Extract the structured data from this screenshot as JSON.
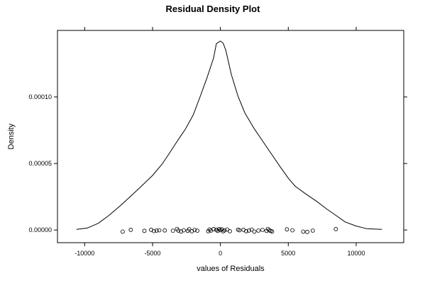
{
  "chart_data": {
    "type": "line",
    "title": "Residual Density Plot",
    "xlabel": "values of Residuals",
    "ylabel": "Density",
    "xlim": [
      -12000,
      13500
    ],
    "ylim": [
      -9.5e-06,
      0.00015
    ],
    "x_ticks": [
      {
        "value": -10000,
        "label": "-10000"
      },
      {
        "value": -5000,
        "label": "-5000"
      },
      {
        "value": 0,
        "label": "0"
      },
      {
        "value": 5000,
        "label": "5000"
      },
      {
        "value": 10000,
        "label": "10000"
      }
    ],
    "y_ticks": [
      {
        "value": 0,
        "label": "0.00000"
      },
      {
        "value": 5e-05,
        "label": "0.00005"
      },
      {
        "value": 0.0001,
        "label": "0.00010"
      }
    ],
    "grid": false,
    "legend": "none",
    "density_curve": {
      "x": [
        -10600,
        -9800,
        -9000,
        -8200,
        -7400,
        -6600,
        -5800,
        -5000,
        -4300,
        -3800,
        -3200,
        -2600,
        -2000,
        -1500,
        -1000,
        -500,
        -300,
        0,
        200,
        400,
        800,
        1300,
        1800,
        2500,
        3200,
        3800,
        4400,
        5000,
        5500,
        6300,
        7100,
        7800,
        8500,
        9200,
        10000,
        10800,
        11900
      ],
      "y": [
        5e-07,
        1.5e-06,
        5e-06,
        1.1e-05,
        1.8e-05,
        2.55e-05,
        3.32e-05,
        4.1e-05,
        4.95e-05,
        5.7e-05,
        6.65e-05,
        7.55e-05,
        8.65e-05,
        0.0001,
        0.000114,
        0.0001295,
        0.00014,
        0.000142,
        0.0001405,
        0.000135,
        0.000117,
        0.0001005,
        8.8e-05,
        7.6e-05,
        6.55e-05,
        5.65e-05,
        4.75e-05,
        3.9e-05,
        3.3e-05,
        2.7e-05,
        2.15e-05,
        1.6e-05,
        1.1e-05,
        6e-06,
        3e-06,
        1e-06,
        5e-07
      ]
    },
    "residual_points": {
      "x": [
        -7200,
        -6600,
        -5600,
        -5100,
        -4900,
        -4700,
        -4500,
        -4100,
        -3500,
        -3200,
        -3100,
        -2900,
        -2700,
        -2400,
        -2300,
        -2100,
        -1900,
        -1700,
        -900,
        -800,
        -700,
        -500,
        -300,
        -200,
        -100,
        0,
        100,
        200,
        300,
        500,
        700,
        1300,
        1400,
        1700,
        1900,
        2100,
        2300,
        2500,
        2800,
        3100,
        3400,
        3500,
        3600,
        3700,
        3800,
        4900,
        5300,
        6100,
        6400,
        6800,
        8500
      ],
      "y": [
        -1.2e-06,
        2e-07,
        -6e-07,
        2e-07,
        -8e-07,
        -4e-07,
        -2e-07,
        -3e-07,
        -5e-07,
        8e-07,
        -4e-07,
        -1.1e-06,
        -2e-07,
        -6e-07,
        6e-07,
        -9e-07,
        1e-07,
        -5e-07,
        -9e-07,
        4e-07,
        -4e-07,
        7e-07,
        2e-07,
        -6e-07,
        7e-07,
        -1e-07,
        5e-07,
        -1e-06,
        -3e-07,
        4e-07,
        -9e-07,
        3e-07,
        -2e-07,
        2e-07,
        -9e-07,
        -4e-07,
        3e-07,
        -1.2e-06,
        -4e-07,
        1e-07,
        -7e-07,
        8e-07,
        -2e-07,
        -6e-07,
        -1.1e-06,
        5e-07,
        -2e-07,
        -1.2e-06,
        -1.4e-06,
        -4e-07,
        7e-07
      ]
    }
  }
}
